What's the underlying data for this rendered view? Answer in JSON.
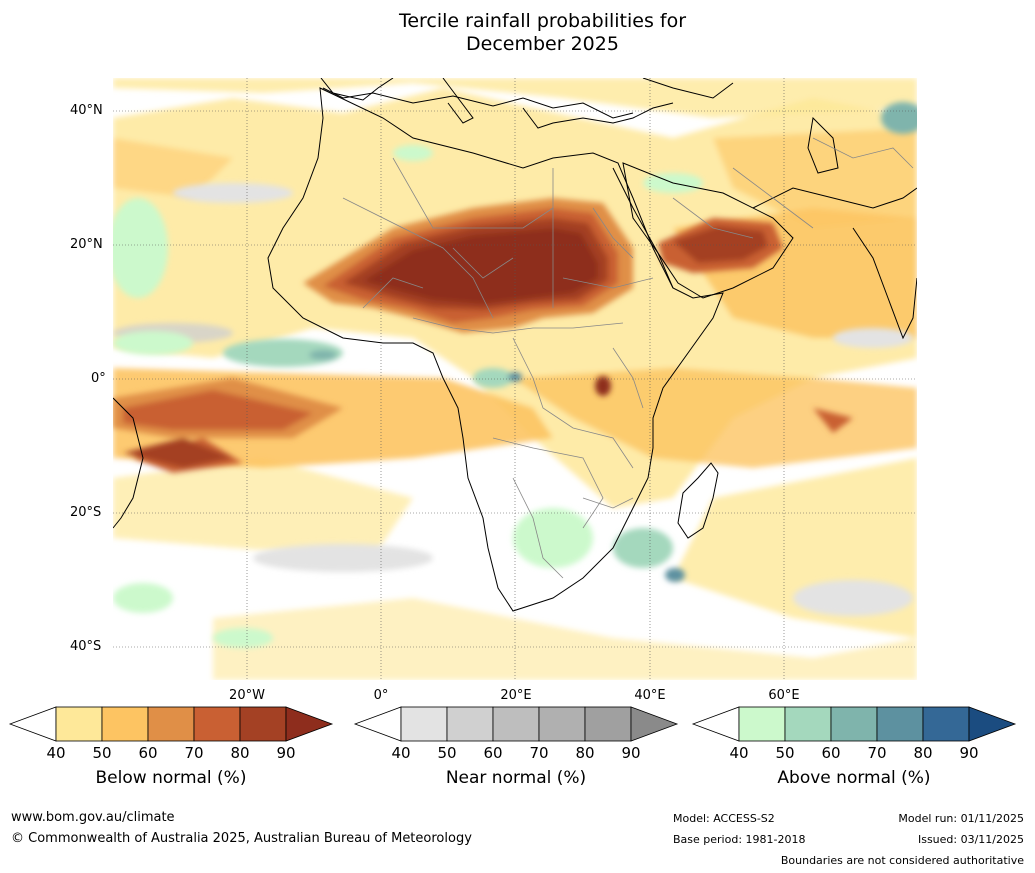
{
  "title": {
    "line1": "Tercile rainfall probabilities for",
    "line2": "December 2025"
  },
  "map": {
    "lat_labels": [
      "40°N",
      "20°N",
      "0°",
      "20°S",
      "40°S"
    ],
    "lon_labels": [
      "20°W",
      "0°",
      "20°E",
      "40°E",
      "60°E"
    ]
  },
  "legends": [
    {
      "label": "Below normal (%)",
      "ticks": [
        "40",
        "50",
        "60",
        "70",
        "80",
        "90"
      ],
      "colors": [
        "#ffffff",
        "#fee899",
        "#fdc462",
        "#e08f47",
        "#c96033",
        "#a44124",
        "#8e2d1d"
      ]
    },
    {
      "label": "Near normal (%)",
      "ticks": [
        "40",
        "50",
        "60",
        "70",
        "80",
        "90"
      ],
      "colors": [
        "#ffffff",
        "#e3e3e3",
        "#d0d0d0",
        "#bebebe",
        "#b0b0b0",
        "#a0a0a0",
        "#8a8a8a"
      ]
    },
    {
      "label": "Above normal (%)",
      "ticks": [
        "40",
        "50",
        "60",
        "70",
        "80",
        "90"
      ],
      "colors": [
        "#ffffff",
        "#ccf9cc",
        "#a4d8bd",
        "#7fb4ac",
        "#5d91a0",
        "#346896",
        "#1b4c80"
      ]
    }
  ],
  "footer": {
    "website": "www.bom.gov.au/climate",
    "copyright": "© Commonwealth of Australia 2025, Australian Bureau of Meteorology",
    "model": "Model: ACCESS-S2",
    "base_period": "Base period: 1981-2018",
    "model_run": "Model run: 01/11/2025",
    "issued": "Issued: 03/11/2025",
    "disclaimer": "Boundaries are not considered authoritative"
  }
}
